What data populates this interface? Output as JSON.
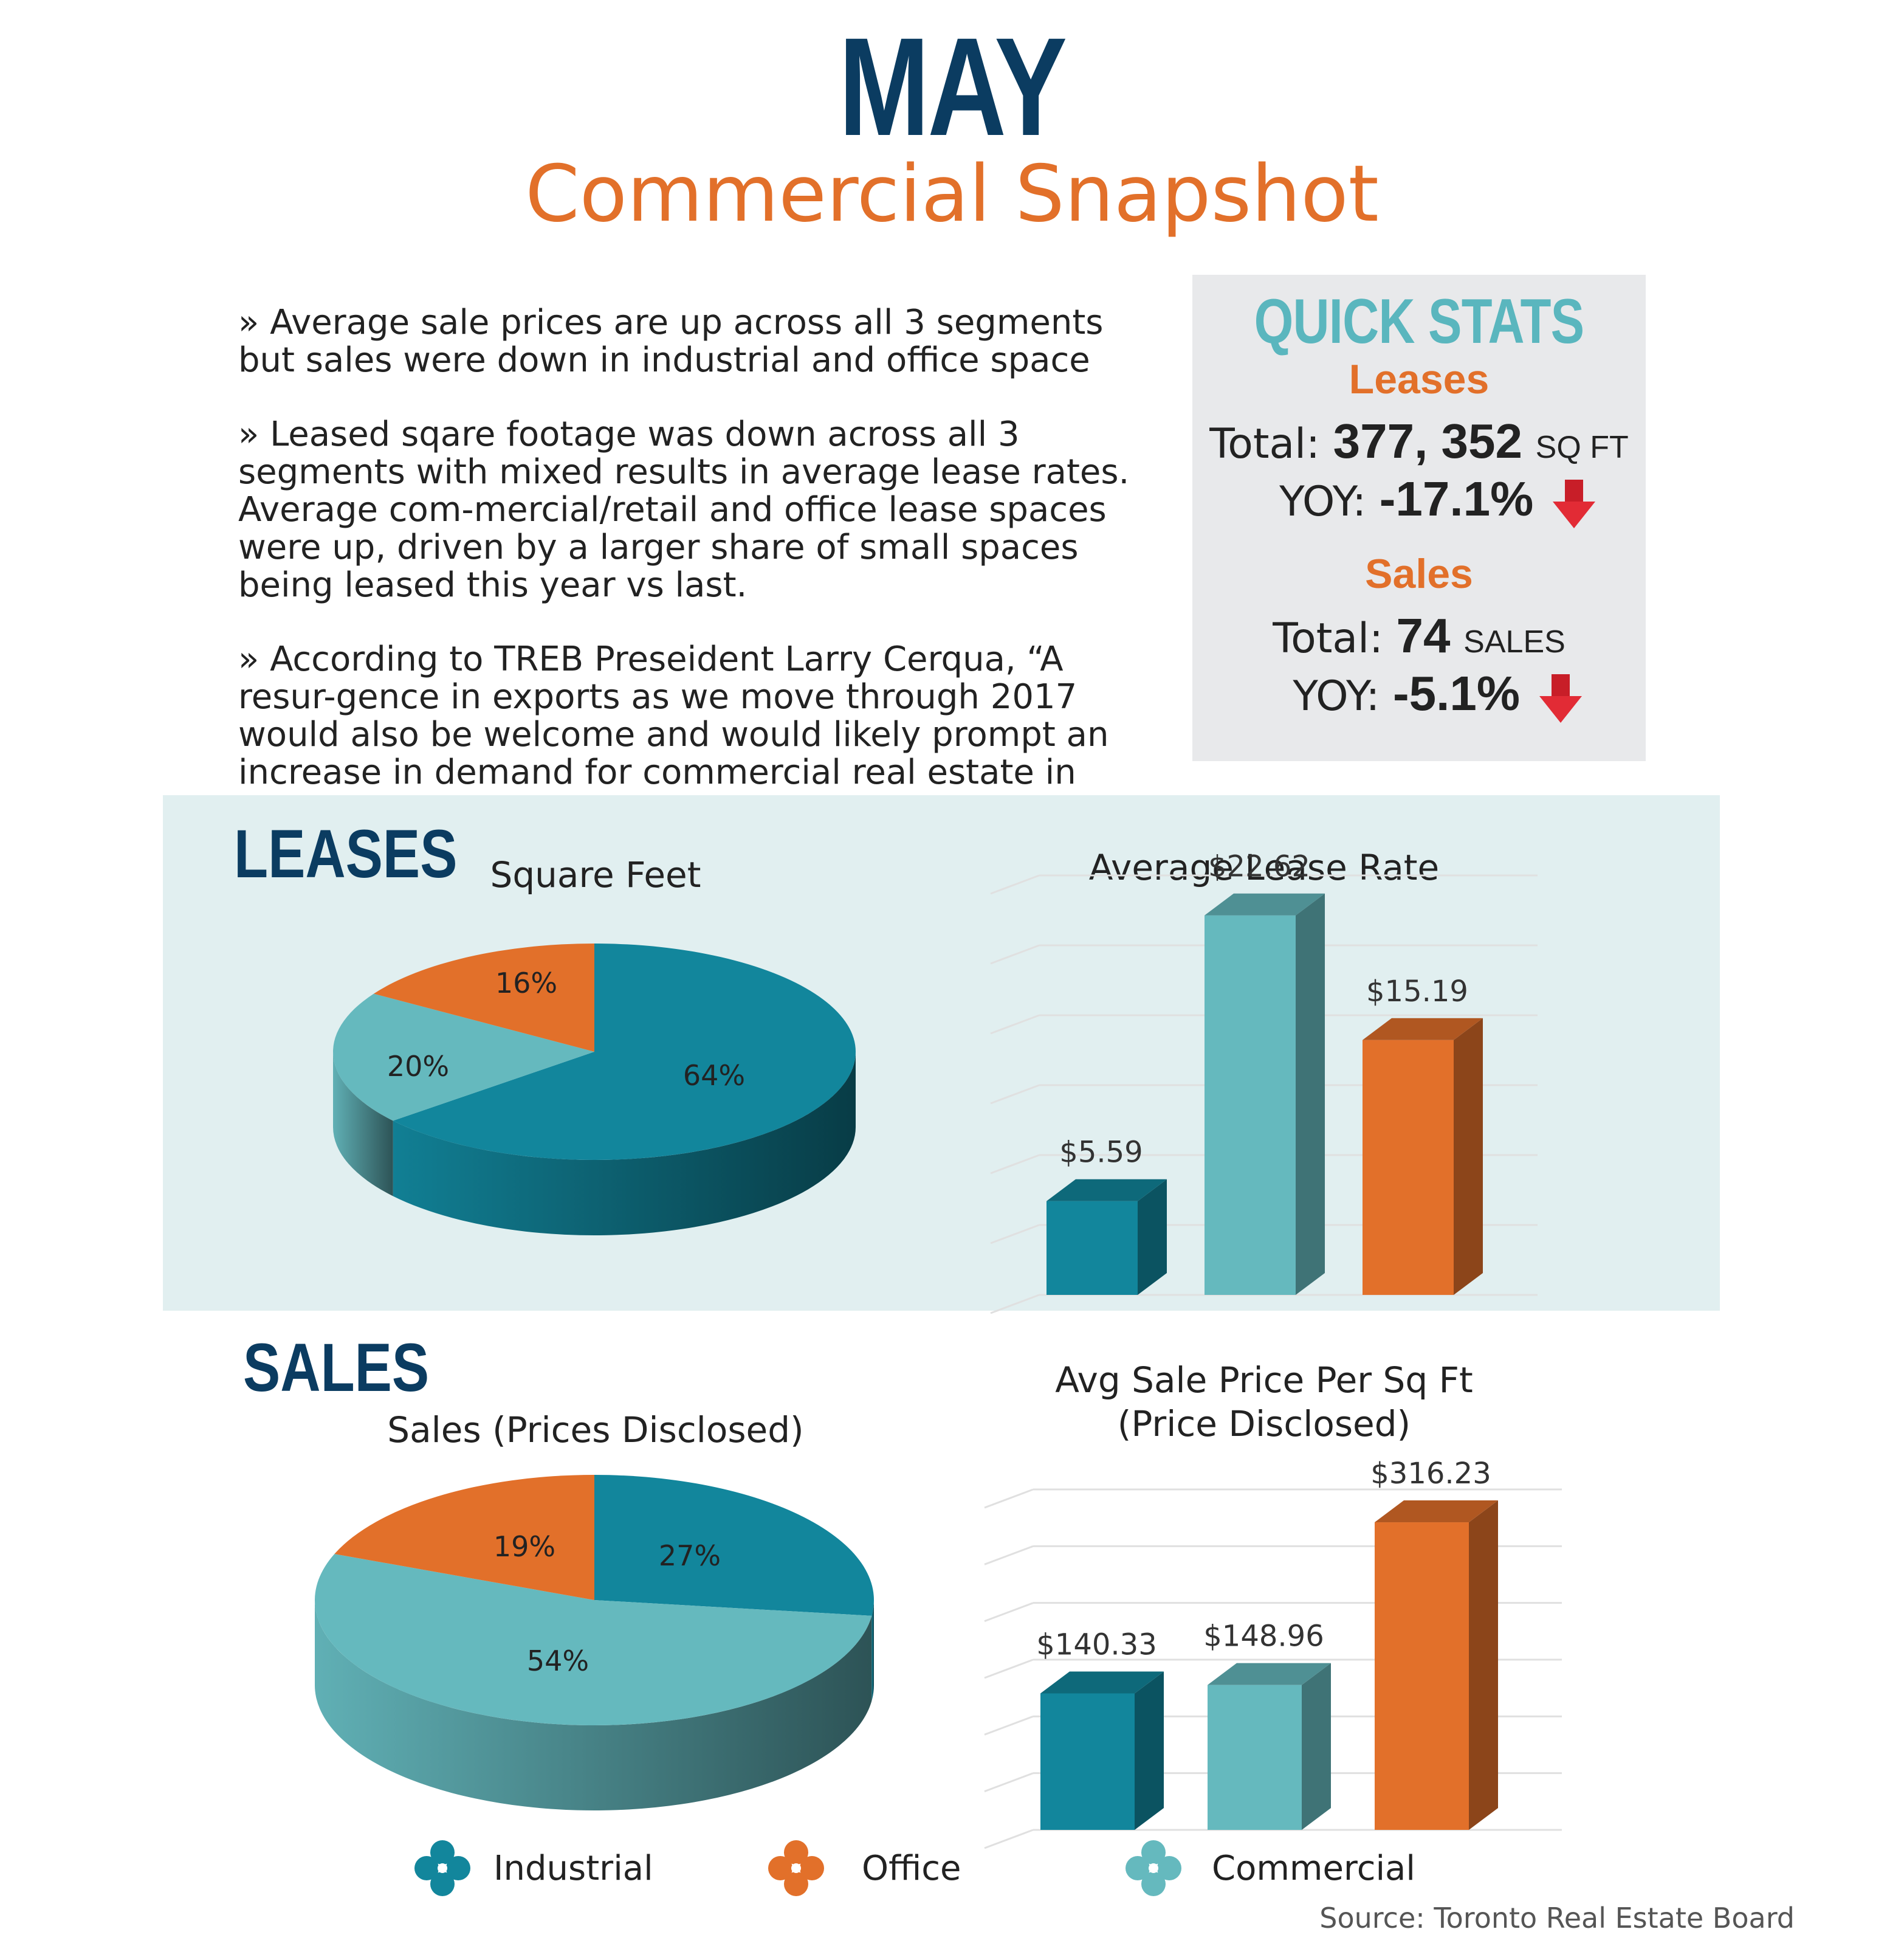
{
  "header": {
    "month": "MAY",
    "subtitle": "Commercial Snapshot"
  },
  "bullets": [
    "» Average sale prices are up across all 3 segments but sales were down in industrial and office space",
    "» Leased sqare footage was down across all 3 segments with mixed results in average lease rates. Average com-mercial/retail and office lease spaces were up, driven by a larger share of small spaces being leased this year vs last.",
    "» According to TREB Preseident Larry Cerqua, “A resur-gence in exports as we move through 2017 would also be welcome and would likely prompt an increase in demand for commercial real estate in southern Ontario as well”"
  ],
  "quick_stats": {
    "title": "QUICK STATS",
    "leases": {
      "heading": "Leases",
      "total_label": "Total:",
      "total_value": "377, 352",
      "total_unit": "SQ FT",
      "yoy_label": "YOY:",
      "yoy_value": "-17.1%",
      "trend": "down-arrow-icon"
    },
    "sales": {
      "heading": "Sales",
      "total_label": "Total:",
      "total_value": "74",
      "total_unit": "SALES",
      "yoy_label": "YOY:",
      "yoy_value": "-5.1%",
      "trend": "down-arrow-icon"
    }
  },
  "sections": {
    "leases": "LEASES",
    "sales": "SALES"
  },
  "colors": {
    "industrial": "#12869c",
    "office": "#e2702a",
    "commercial": "#65b9be",
    "navy": "#0b3c61"
  },
  "chart_data": [
    {
      "type": "pie",
      "title": "Square Feet",
      "categories": [
        "Industrial",
        "Commercial",
        "Office"
      ],
      "values": [
        64,
        20,
        16
      ],
      "labels": [
        "64%",
        "20%",
        "16%"
      ]
    },
    {
      "type": "bar",
      "title": "Average Lease Rate",
      "categories": [
        "Industrial",
        "Commercial",
        "Office"
      ],
      "values": [
        5.59,
        22.62,
        15.19
      ],
      "labels": [
        "$5.59",
        "$22.62",
        "$15.19"
      ],
      "ylim": [
        0,
        25
      ],
      "grid": true
    },
    {
      "type": "pie",
      "title": "Sales (Prices Disclosed)",
      "categories": [
        "Industrial",
        "Commercial",
        "Office"
      ],
      "values": [
        27,
        54,
        19
      ],
      "labels": [
        "27%",
        "54%",
        "19%"
      ]
    },
    {
      "type": "bar",
      "title": "Avg Sale Price Per Sq Ft (Price Disclosed)",
      "title_lines": [
        "Avg Sale Price Per Sq Ft",
        "(Price Disclosed)"
      ],
      "categories": [
        "Industrial",
        "Commercial",
        "Office"
      ],
      "values": [
        140.33,
        148.96,
        316.23
      ],
      "labels": [
        "$140.33",
        "$148.96",
        "$316.23"
      ],
      "ylim": [
        0,
        350
      ],
      "grid": true
    }
  ],
  "legend": [
    {
      "label": "Industrial",
      "color": "#12869c"
    },
    {
      "label": "Office",
      "color": "#e2702a"
    },
    {
      "label": "Commercial",
      "color": "#65b9be"
    }
  ],
  "source": "Source: Toronto Real Estate Board"
}
